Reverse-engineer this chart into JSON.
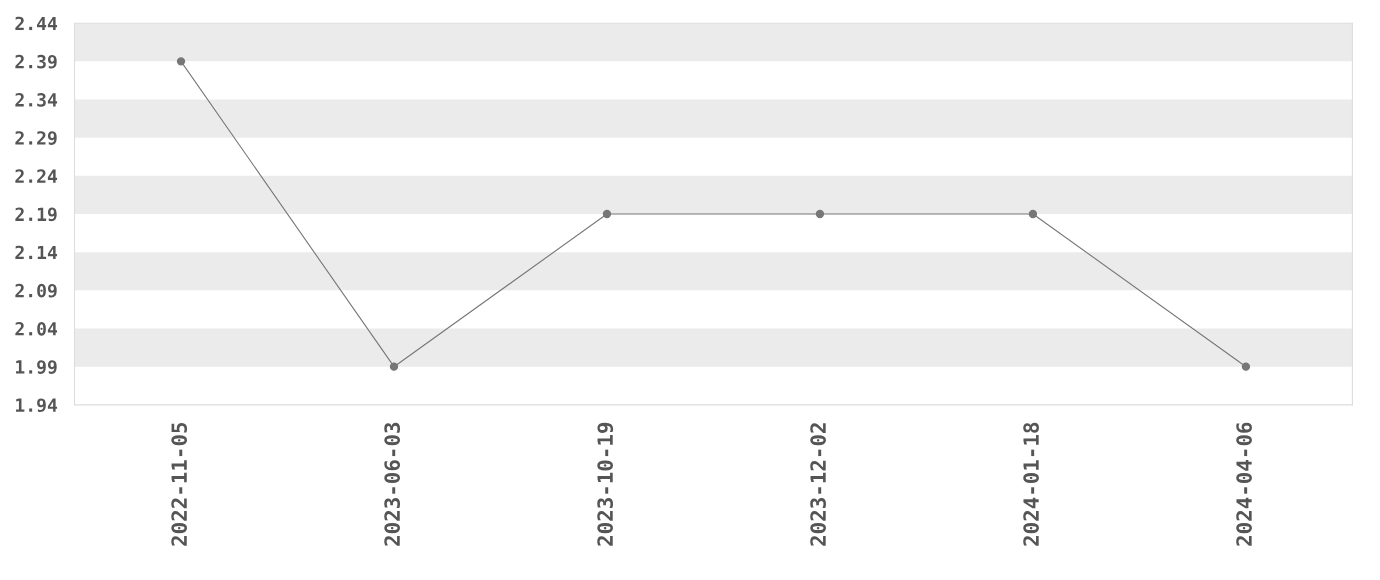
{
  "chart_data": {
    "type": "line",
    "categories": [
      "2022-11-05",
      "2023-06-03",
      "2023-10-19",
      "2023-12-02",
      "2024-01-18",
      "2024-04-06"
    ],
    "series": [
      {
        "color": "#777777",
        "values": [
          2.39,
          1.99,
          2.19,
          2.19,
          2.19,
          1.99
        ]
      }
    ],
    "ylim": [
      1.94,
      2.44
    ],
    "yticks": [
      1.94,
      1.99,
      2.04,
      2.09,
      2.14,
      2.19,
      2.24,
      2.29,
      2.34,
      2.39,
      2.44
    ],
    "marker": "circle",
    "line_style": "solid",
    "grid": false,
    "legend": false,
    "bands": [
      {
        "axis": "y",
        "from": 2.39,
        "to": 2.44,
        "color": "#ebebeb"
      },
      {
        "axis": "y",
        "from": 2.29,
        "to": 2.34,
        "color": "#ebebeb"
      },
      {
        "axis": "y",
        "from": 2.19,
        "to": 2.24,
        "color": "#ebebeb"
      },
      {
        "axis": "y",
        "from": 2.09,
        "to": 2.14,
        "color": "#ebebeb"
      },
      {
        "axis": "y",
        "from": 1.99,
        "to": 2.04,
        "color": "#ebebeb"
      }
    ]
  }
}
